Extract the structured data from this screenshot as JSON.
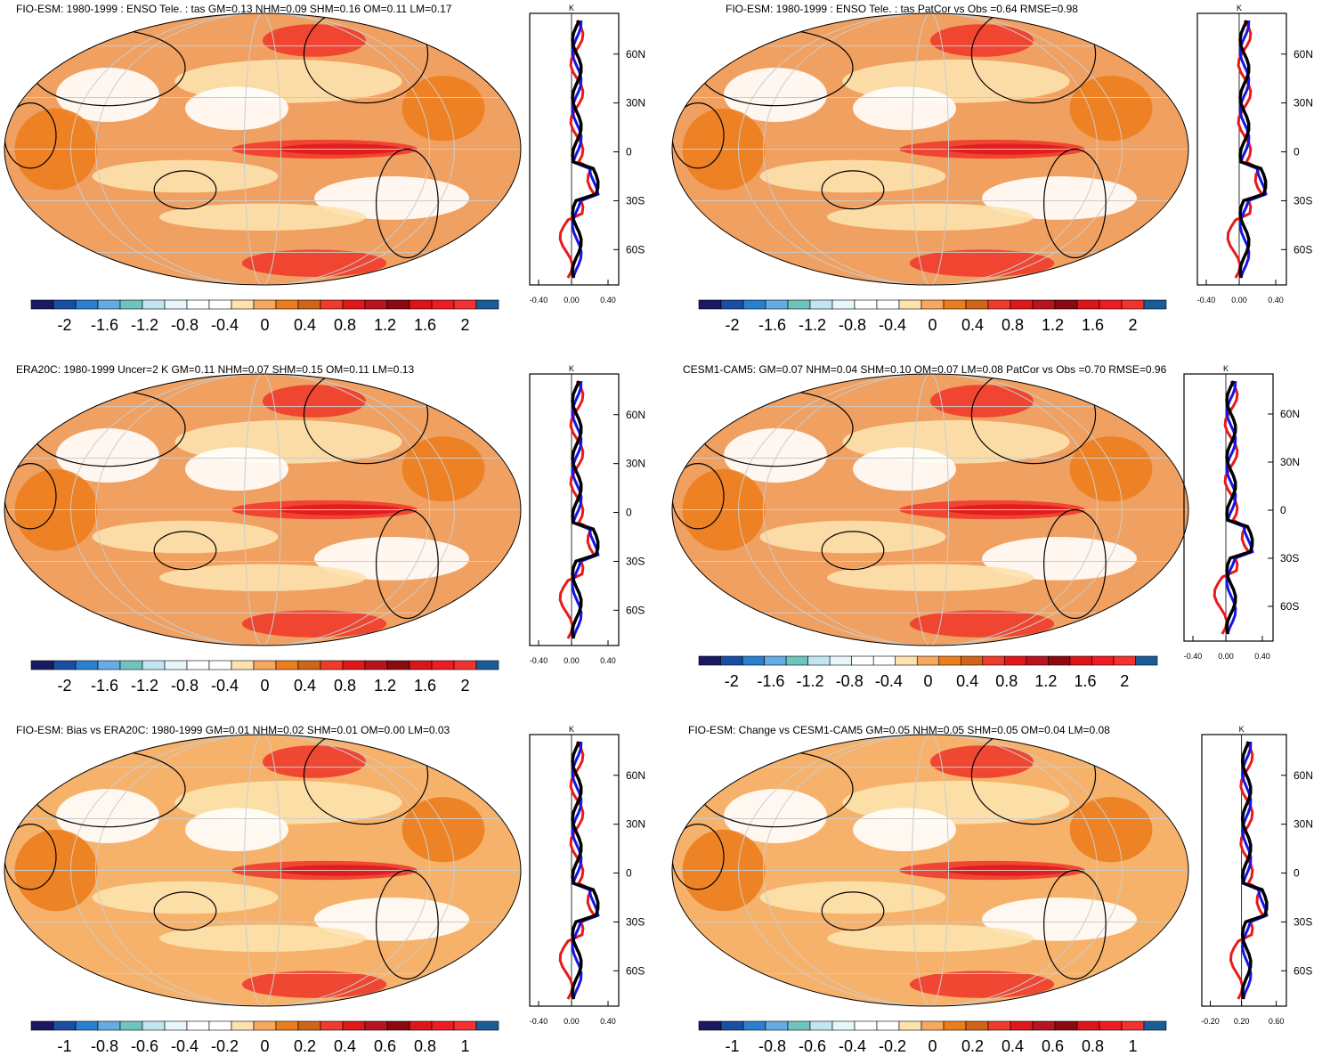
{
  "palettes": {
    "pal2": [
      "#1a1a63",
      "#1a4ea3",
      "#2a7fd0",
      "#65abe4",
      "#6fc4bf",
      "#c2e6f1",
      "#e6f6fa",
      "#ffffff",
      "#ffffff",
      "#fde2ae",
      "#f6a95e",
      "#ec7d1e",
      "#cf6518",
      "#ee3b2c",
      "#e0181b",
      "#b8131e",
      "#8a0a10",
      "#dc1518",
      "#ec1c22",
      "#f2322f",
      "#1a5c9a"
    ],
    "pal1": [
      "#1a1a63",
      "#1a4ea3",
      "#2a7fd0",
      "#65abe4",
      "#6fc4bf",
      "#c2e6f1",
      "#e6f6fa",
      "#ffffff",
      "#ffffff",
      "#fde2ae",
      "#f6a95e",
      "#ec7d1e",
      "#cf6518",
      "#ee3b2c",
      "#e0181b",
      "#b8131e",
      "#8a0a10",
      "#dc1518",
      "#ec1c22",
      "#f2322f",
      "#1a5c9a"
    ]
  },
  "legend_2": [
    "-2",
    "-1.6",
    "-1.2",
    "-0.8",
    "-0.4",
    "0",
    "0.4",
    "0.8",
    "1.2",
    "1.6",
    "2"
  ],
  "legend_1": [
    "-1",
    "-0.8",
    "-0.6",
    "-0.4",
    "-0.2",
    "0",
    "0.2",
    "0.4",
    "0.6",
    "0.8",
    "1"
  ],
  "panels": [
    {
      "title": "FIO-ESM: 1980-1999 : ENSO Tele. : tas GM=0.13 NHM=0.09 SHM=0.16 OM=0.11 LM=0.17",
      "unit": "K",
      "zonal_ticks": [
        "-0.40",
        "0.00",
        "0.40"
      ],
      "lat_ticks": [
        "60N",
        "30N",
        "0",
        "30S",
        "60S"
      ],
      "legend": "legend_2"
    },
    {
      "title": "FIO-ESM: 1980-1999 : ENSO Tele. : tas PatCor vs Obs =0.64 RMSE=0.98",
      "unit": "K",
      "zonal_ticks": [
        "-0.40",
        "0.00",
        "0.40"
      ],
      "lat_ticks": [
        "60N",
        "30N",
        "0",
        "30S",
        "60S"
      ],
      "legend": "legend_2"
    },
    {
      "title": "ERA20C: 1980-1999 Uncer=2 K GM=0.11 NHM=0.07 SHM=0.15 OM=0.11 LM=0.13",
      "unit": "K",
      "zonal_ticks": [
        "-0.40",
        "0.00",
        "0.40"
      ],
      "lat_ticks": [
        "60N",
        "30N",
        "0",
        "30S",
        "60S"
      ],
      "legend": "legend_2"
    },
    {
      "title": "CESM1-CAM5: GM=0.07 NHM=0.04 SHM=0.10 OM=0.07 LM=0.08 PatCor vs Obs =0.70 RMSE=0.96",
      "unit": "K",
      "zonal_ticks": [
        "-0.40",
        "0.00",
        "0.40"
      ],
      "lat_ticks": [
        "60N",
        "30N",
        "0",
        "30S",
        "60S"
      ],
      "legend": "legend_2"
    },
    {
      "title": "FIO-ESM: Bias vs ERA20C: 1980-1999 GM=0.01 NHM=0.02 SHM=0.01 OM=0.00 LM=0.03",
      "unit": "K",
      "zonal_ticks": [
        "-0.40",
        "0.00",
        "0.40"
      ],
      "lat_ticks": [
        "60N",
        "30N",
        "0",
        "30S",
        "60S"
      ],
      "legend": "legend_1"
    },
    {
      "title": "FIO-ESM: Change vs CESM1-CAM5 GM=0.05 NHM=0.05 SHM=0.05 OM=0.04 LM=0.08",
      "unit": "K",
      "zonal_ticks": [
        "-0.20",
        "0.20",
        "0.60"
      ],
      "lat_ticks": [
        "60N",
        "30N",
        "0",
        "30S",
        "60S"
      ],
      "legend": "legend_1"
    }
  ],
  "colors": {
    "series_a": "#e8191b",
    "series_b": "#1515e6",
    "series_c": "#000000"
  }
}
